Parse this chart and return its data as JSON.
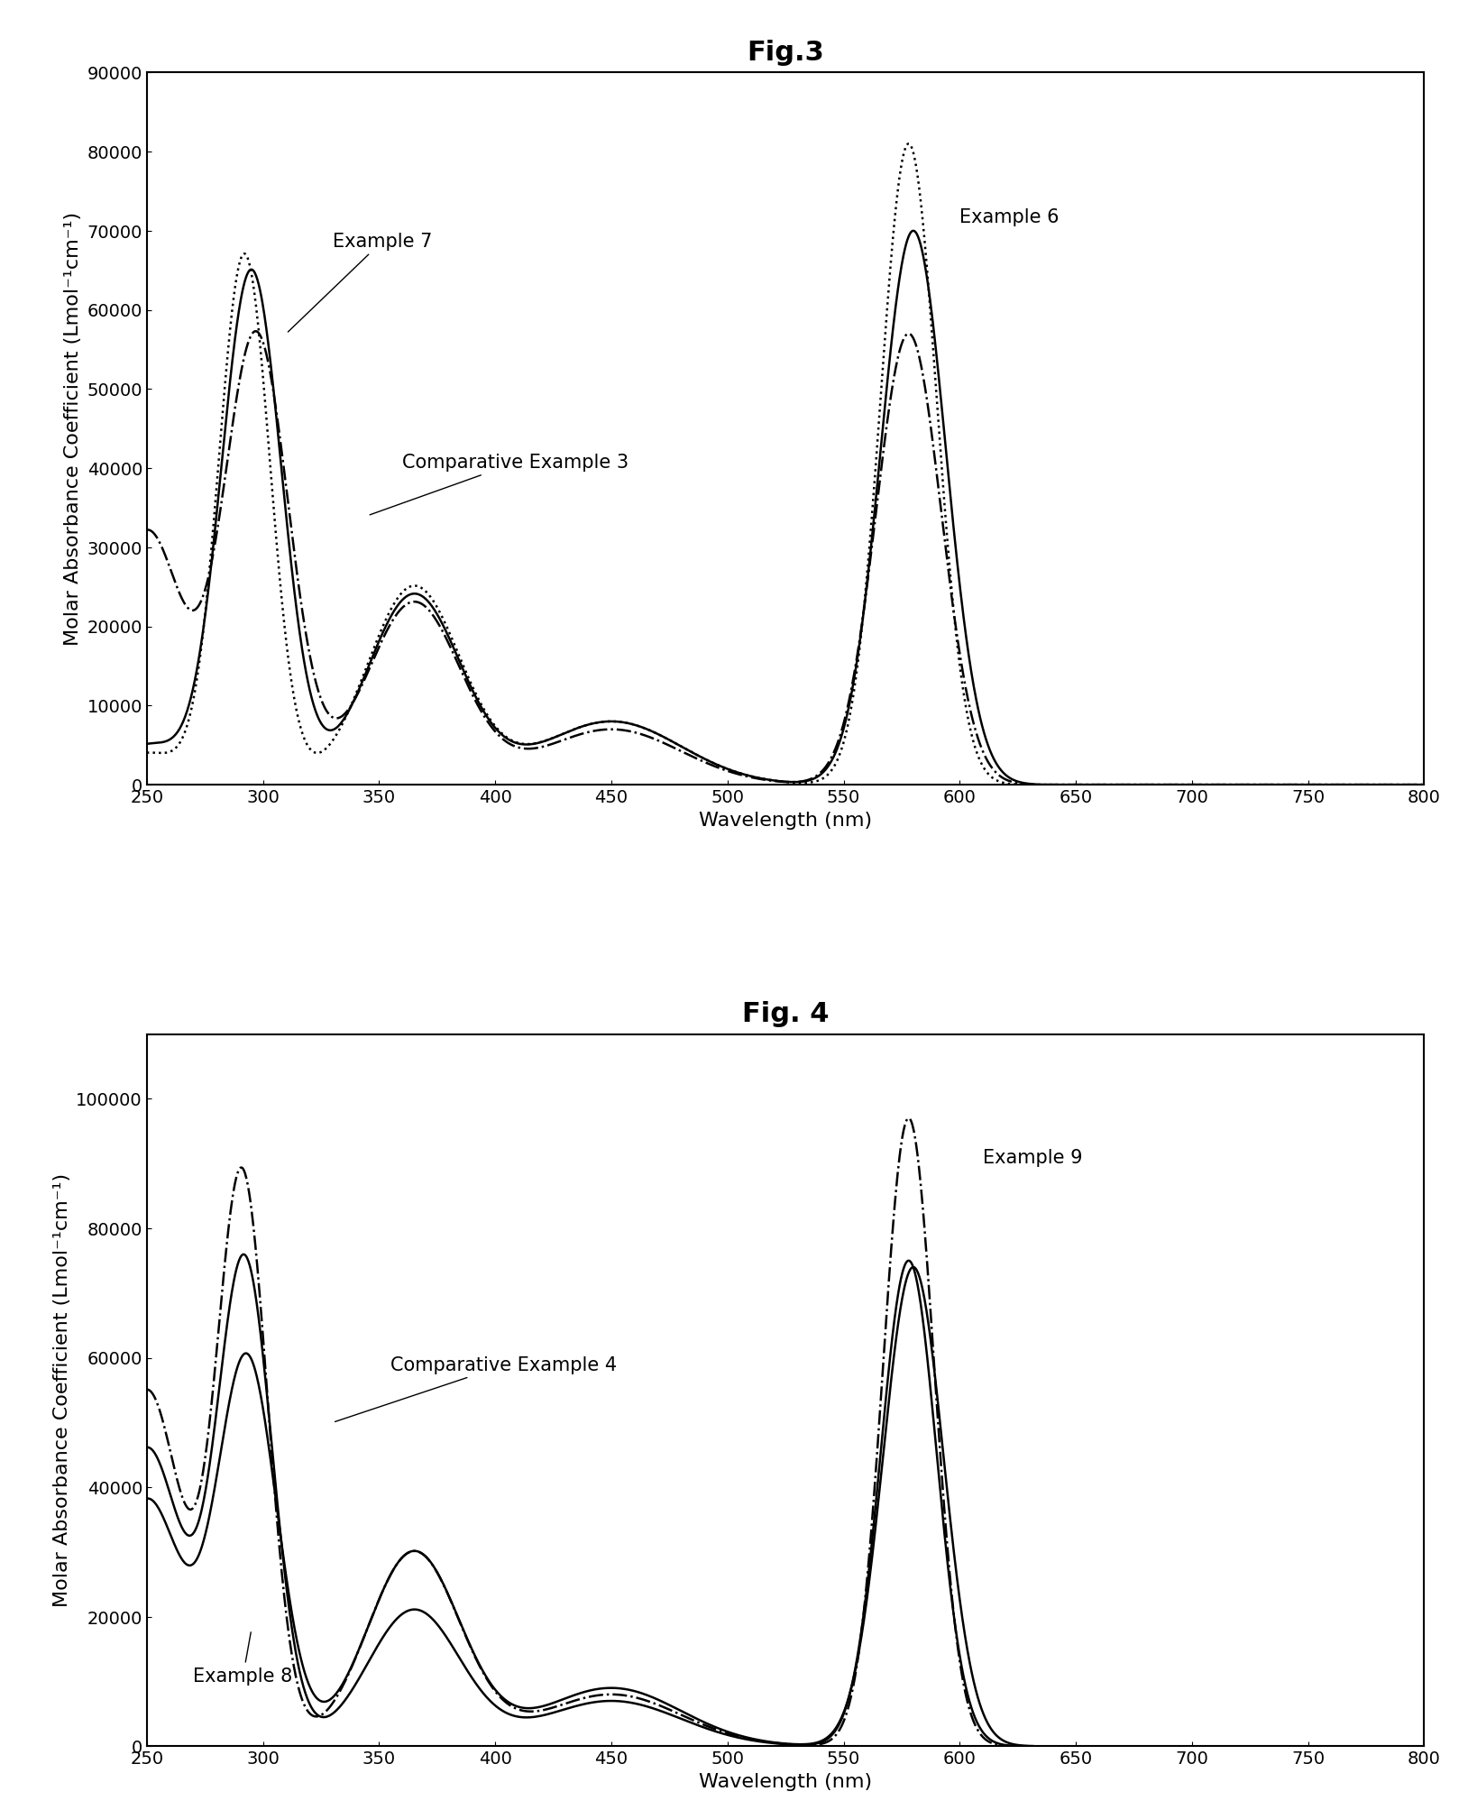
{
  "fig3_title": "Fig.3",
  "fig4_title": "Fig. 4",
  "ylabel": "Molar Absorbance Coefficient (Lmol⁻¹cm⁻¹)",
  "xlabel": "Wavelength (nm)",
  "fig3_ylim": [
    0,
    90000
  ],
  "fig4_ylim": [
    0,
    110000
  ],
  "fig3_yticks": [
    0,
    10000,
    20000,
    30000,
    40000,
    50000,
    60000,
    70000,
    80000,
    90000
  ],
  "fig4_yticks": [
    0,
    20000,
    40000,
    60000,
    80000,
    100000
  ],
  "xlim": [
    250,
    800
  ],
  "xticks": [
    250,
    300,
    350,
    400,
    450,
    500,
    550,
    600,
    650,
    700,
    750,
    800
  ],
  "background_color": "#ffffff",
  "line_color": "#000000",
  "title_fontsize": 22,
  "label_fontsize": 16,
  "tick_fontsize": 14,
  "annot_fontsize": 15
}
